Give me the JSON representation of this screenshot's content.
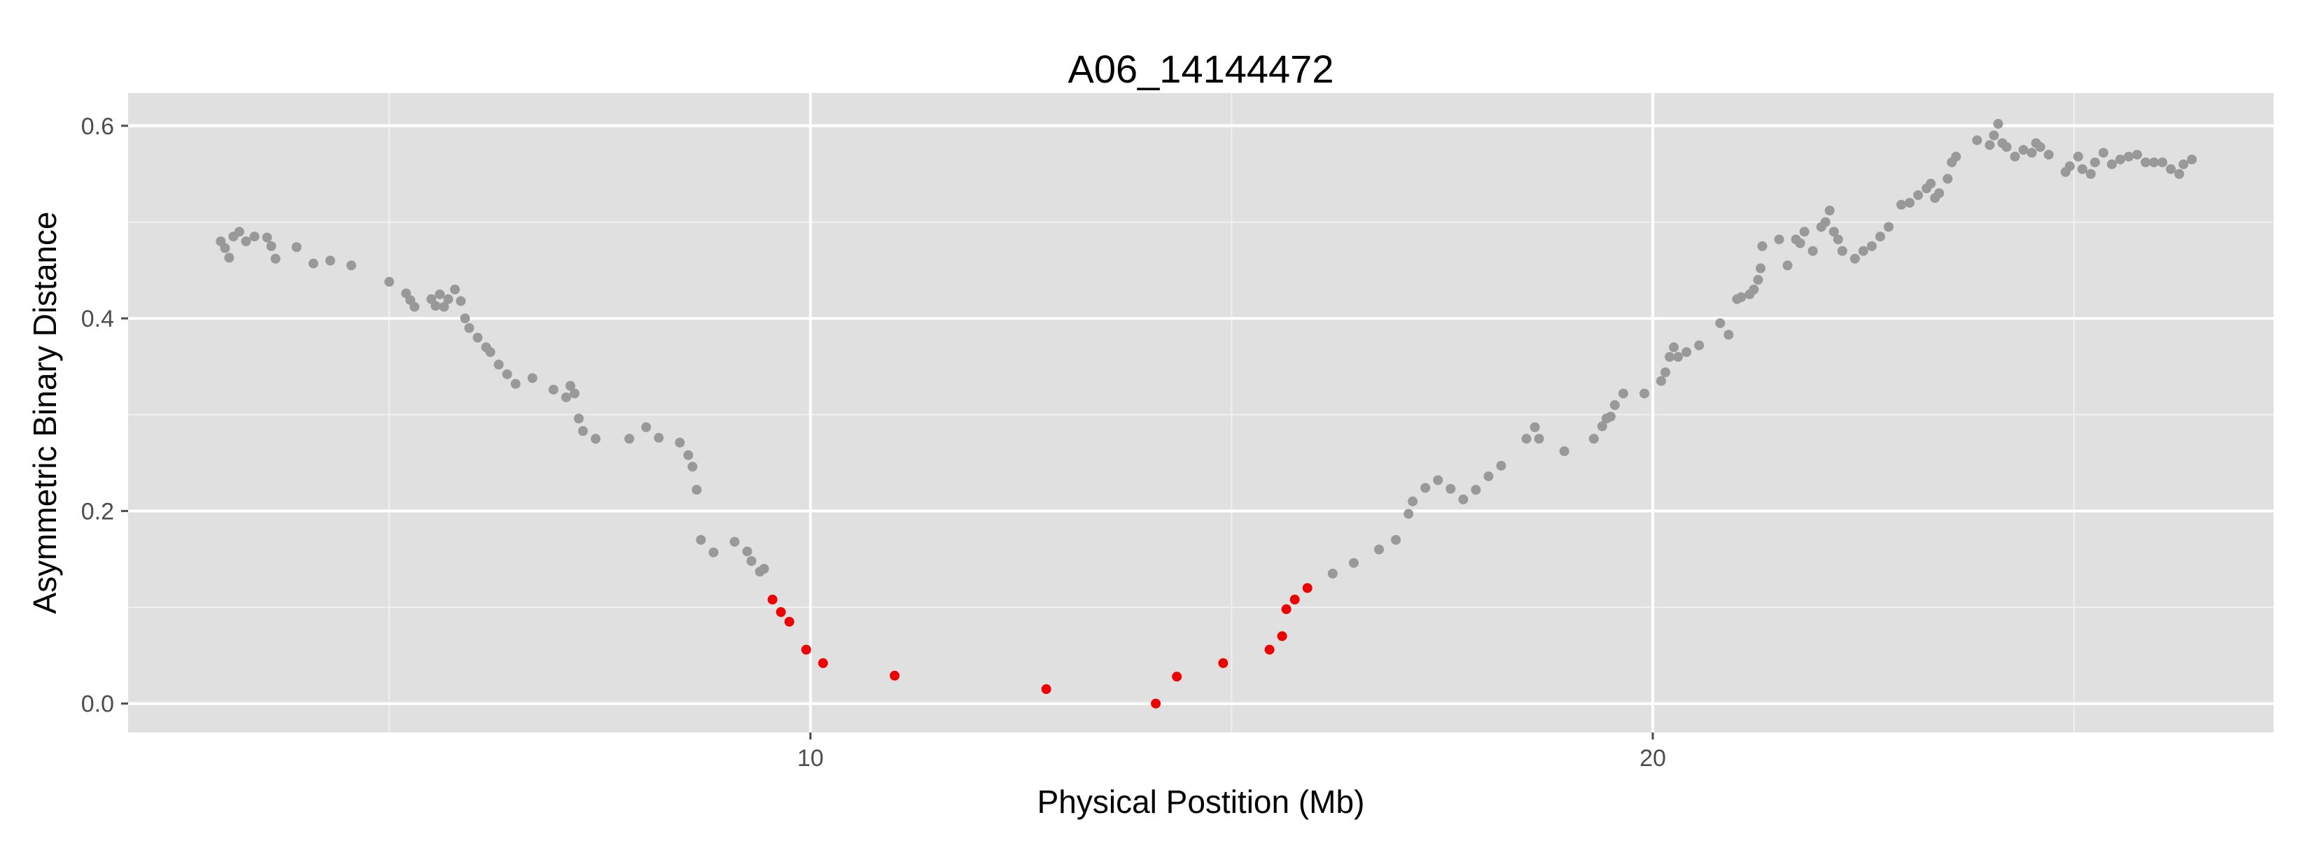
{
  "chart_data": {
    "type": "scatter",
    "title": "A06_14144472",
    "xlabel": "Physical Postition (Mb)",
    "ylabel": "Asymmetric Binary Distance",
    "xlim": [
      1.9,
      25.4
    ],
    "ylim": [
      -0.03,
      0.634
    ],
    "x_ticks": [
      10,
      20
    ],
    "x_tick_labels": [
      "10",
      "20"
    ],
    "x_minor_grid": [
      5,
      15,
      25
    ],
    "y_ticks": [
      0.0,
      0.2,
      0.4,
      0.6
    ],
    "y_tick_labels": [
      "0.0",
      "0.2",
      "0.4",
      "0.6"
    ],
    "y_minor_grid": [
      0.1,
      0.3,
      0.5
    ],
    "grid": true,
    "colors": {
      "panel_background": "#e0e0e0",
      "grid_major": "#ffffff",
      "grid_minor": "#f0f0f0",
      "point_default": "#999999",
      "point_highlight": "#ee0000"
    },
    "series": [
      {
        "color": "#999999",
        "points": [
          [
            3.0,
            0.48
          ],
          [
            3.05,
            0.473
          ],
          [
            3.1,
            0.463
          ],
          [
            3.15,
            0.485
          ],
          [
            3.22,
            0.49
          ],
          [
            3.3,
            0.48
          ],
          [
            3.4,
            0.485
          ],
          [
            3.55,
            0.484
          ],
          [
            3.6,
            0.475
          ],
          [
            3.65,
            0.462
          ],
          [
            3.9,
            0.474
          ],
          [
            4.1,
            0.457
          ],
          [
            4.3,
            0.46
          ],
          [
            4.55,
            0.455
          ],
          [
            5.0,
            0.438
          ],
          [
            5.2,
            0.426
          ],
          [
            5.25,
            0.419
          ],
          [
            5.3,
            0.412
          ],
          [
            5.5,
            0.42
          ],
          [
            5.55,
            0.413
          ],
          [
            5.6,
            0.425
          ],
          [
            5.65,
            0.412
          ],
          [
            5.7,
            0.42
          ],
          [
            5.78,
            0.43
          ],
          [
            5.85,
            0.418
          ],
          [
            5.9,
            0.4
          ],
          [
            5.95,
            0.39
          ],
          [
            6.05,
            0.38
          ],
          [
            6.15,
            0.37
          ],
          [
            6.2,
            0.365
          ],
          [
            6.3,
            0.352
          ],
          [
            6.4,
            0.342
          ],
          [
            6.5,
            0.332
          ],
          [
            6.7,
            0.338
          ],
          [
            6.95,
            0.326
          ],
          [
            7.1,
            0.318
          ],
          [
            7.15,
            0.33
          ],
          [
            7.2,
            0.322
          ],
          [
            7.25,
            0.296
          ],
          [
            7.3,
            0.283
          ],
          [
            7.45,
            0.275
          ],
          [
            7.85,
            0.275
          ],
          [
            8.05,
            0.287
          ],
          [
            8.2,
            0.276
          ],
          [
            8.45,
            0.271
          ],
          [
            8.55,
            0.258
          ],
          [
            8.6,
            0.246
          ],
          [
            8.65,
            0.222
          ],
          [
            8.7,
            0.17
          ],
          [
            8.85,
            0.157
          ],
          [
            9.1,
            0.168
          ],
          [
            9.25,
            0.158
          ],
          [
            9.3,
            0.148
          ],
          [
            9.4,
            0.137
          ],
          [
            9.45,
            0.14
          ],
          [
            16.2,
            0.135
          ],
          [
            16.45,
            0.146
          ],
          [
            16.75,
            0.16
          ],
          [
            16.95,
            0.17
          ],
          [
            17.1,
            0.197
          ],
          [
            17.15,
            0.21
          ],
          [
            17.3,
            0.224
          ],
          [
            17.45,
            0.232
          ],
          [
            17.6,
            0.223
          ],
          [
            17.75,
            0.212
          ],
          [
            17.9,
            0.222
          ],
          [
            18.05,
            0.236
          ],
          [
            18.2,
            0.247
          ],
          [
            18.5,
            0.275
          ],
          [
            18.6,
            0.287
          ],
          [
            18.65,
            0.275
          ],
          [
            18.95,
            0.262
          ],
          [
            19.3,
            0.275
          ],
          [
            19.4,
            0.288
          ],
          [
            19.45,
            0.296
          ],
          [
            19.5,
            0.298
          ],
          [
            19.55,
            0.31
          ],
          [
            19.65,
            0.322
          ],
          [
            19.9,
            0.322
          ],
          [
            20.1,
            0.335
          ],
          [
            20.15,
            0.344
          ],
          [
            20.2,
            0.36
          ],
          [
            20.25,
            0.37
          ],
          [
            20.3,
            0.36
          ],
          [
            20.4,
            0.365
          ],
          [
            20.55,
            0.372
          ],
          [
            20.8,
            0.395
          ],
          [
            20.9,
            0.383
          ],
          [
            21.0,
            0.42
          ],
          [
            21.05,
            0.422
          ],
          [
            21.15,
            0.425
          ],
          [
            21.2,
            0.43
          ],
          [
            21.25,
            0.44
          ],
          [
            21.28,
            0.452
          ],
          [
            21.3,
            0.475
          ],
          [
            21.5,
            0.482
          ],
          [
            21.6,
            0.455
          ],
          [
            21.7,
            0.482
          ],
          [
            21.75,
            0.478
          ],
          [
            21.8,
            0.49
          ],
          [
            21.9,
            0.47
          ],
          [
            22.0,
            0.495
          ],
          [
            22.05,
            0.5
          ],
          [
            22.1,
            0.512
          ],
          [
            22.15,
            0.49
          ],
          [
            22.2,
            0.482
          ],
          [
            22.25,
            0.47
          ],
          [
            22.4,
            0.462
          ],
          [
            22.5,
            0.47
          ],
          [
            22.6,
            0.475
          ],
          [
            22.7,
            0.485
          ],
          [
            22.8,
            0.495
          ],
          [
            22.95,
            0.518
          ],
          [
            23.05,
            0.52
          ],
          [
            23.15,
            0.528
          ],
          [
            23.25,
            0.535
          ],
          [
            23.3,
            0.54
          ],
          [
            23.35,
            0.525
          ],
          [
            23.4,
            0.53
          ],
          [
            23.5,
            0.545
          ],
          [
            23.55,
            0.562
          ],
          [
            23.6,
            0.568
          ],
          [
            23.85,
            0.585
          ],
          [
            24.0,
            0.58
          ],
          [
            24.05,
            0.59
          ],
          [
            24.1,
            0.602
          ],
          [
            24.15,
            0.582
          ],
          [
            24.2,
            0.578
          ],
          [
            24.3,
            0.568
          ],
          [
            24.4,
            0.575
          ],
          [
            24.5,
            0.572
          ],
          [
            24.55,
            0.582
          ],
          [
            24.6,
            0.578
          ],
          [
            24.7,
            0.57
          ],
          [
            24.9,
            0.552
          ],
          [
            24.95,
            0.558
          ],
          [
            25.05,
            0.568
          ],
          [
            25.1,
            0.555
          ],
          [
            25.2,
            0.55
          ],
          [
            25.25,
            0.562
          ],
          [
            25.35,
            0.572
          ],
          [
            25.45,
            0.56
          ],
          [
            25.55,
            0.565
          ],
          [
            25.65,
            0.568
          ],
          [
            25.75,
            0.57
          ],
          [
            25.85,
            0.562
          ],
          [
            25.95,
            0.562
          ],
          [
            26.05,
            0.562
          ],
          [
            26.15,
            0.555
          ],
          [
            26.25,
            0.55
          ],
          [
            26.3,
            0.56
          ],
          [
            26.4,
            0.565
          ]
        ]
      },
      {
        "color": "#ee0000",
        "points": [
          [
            9.55,
            0.108
          ],
          [
            9.65,
            0.095
          ],
          [
            9.75,
            0.085
          ],
          [
            9.95,
            0.056
          ],
          [
            10.15,
            0.042
          ],
          [
            11.0,
            0.029
          ],
          [
            12.8,
            0.015
          ],
          [
            14.1,
            0.0
          ],
          [
            14.35,
            0.028
          ],
          [
            14.9,
            0.042
          ],
          [
            15.45,
            0.056
          ],
          [
            15.6,
            0.07
          ],
          [
            15.65,
            0.098
          ],
          [
            15.75,
            0.108
          ],
          [
            15.9,
            0.12
          ]
        ]
      }
    ]
  }
}
